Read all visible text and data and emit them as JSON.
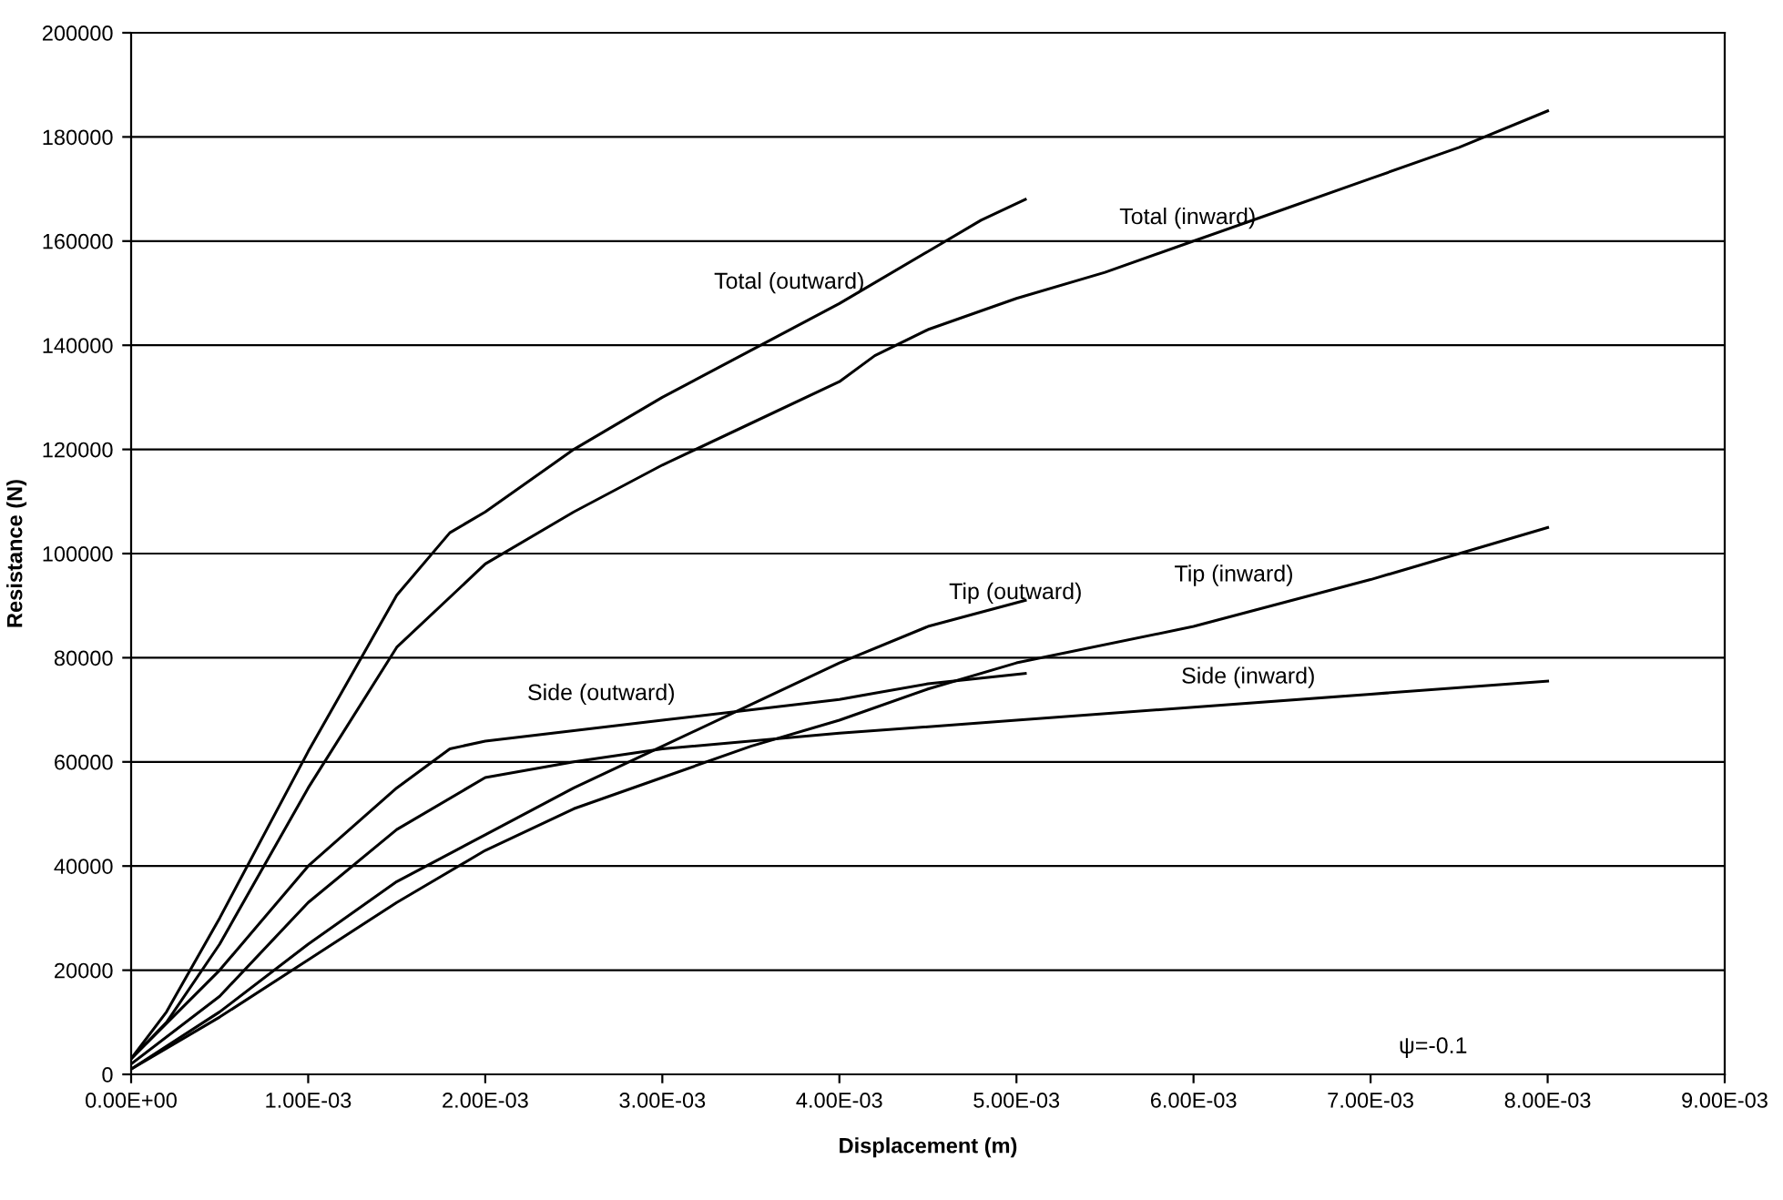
{
  "chart_data": {
    "type": "line",
    "xlabel": "Displacement (m)",
    "ylabel": "Resistance (N)",
    "grid": "y",
    "legend": false,
    "marker": "none",
    "line_style": "solid",
    "xlim": [
      0,
      0.009
    ],
    "ylim": [
      0,
      200000
    ],
    "xticks": [
      {
        "value": 0,
        "label": "0.00E+00"
      },
      {
        "value": 0.001,
        "label": "1.00E-03"
      },
      {
        "value": 0.002,
        "label": "2.00E-03"
      },
      {
        "value": 0.003,
        "label": "3.00E-03"
      },
      {
        "value": 0.004,
        "label": "4.00E-03"
      },
      {
        "value": 0.005,
        "label": "5.00E-03"
      },
      {
        "value": 0.006,
        "label": "6.00E-03"
      },
      {
        "value": 0.007,
        "label": "7.00E-03"
      },
      {
        "value": 0.008,
        "label": "8.00E-03"
      },
      {
        "value": 0.009,
        "label": "9.00E-03"
      }
    ],
    "yticks": [
      0,
      20000,
      40000,
      60000,
      80000,
      100000,
      120000,
      140000,
      160000,
      180000,
      200000
    ],
    "series": [
      {
        "color": "#000000",
        "x": [
          0,
          0.0002,
          0.0005,
          0.001,
          0.0015,
          0.0018,
          0.002,
          0.0025,
          0.003,
          0.0035,
          0.004,
          0.0045,
          0.0048,
          0.00505
        ],
        "values": [
          3000,
          12000,
          30000,
          62000,
          92000,
          104000,
          108000,
          120000,
          130000,
          139000,
          148000,
          158000,
          164000,
          168000
        ]
      },
      {
        "color": "#000000",
        "x": [
          0,
          0.0002,
          0.0005,
          0.001,
          0.0015,
          0.002,
          0.0025,
          0.003,
          0.0035,
          0.004,
          0.0042,
          0.0045,
          0.005,
          0.0055,
          0.006,
          0.0065,
          0.007,
          0.0075,
          0.008
        ],
        "values": [
          3000,
          10000,
          25000,
          55000,
          82000,
          98000,
          108000,
          117000,
          125000,
          133000,
          138000,
          143000,
          149000,
          154000,
          160000,
          166000,
          172000,
          178000,
          185000
        ]
      },
      {
        "color": "#000000",
        "x": [
          0,
          0.0005,
          0.001,
          0.0015,
          0.0018,
          0.002,
          0.003,
          0.004,
          0.0045,
          0.00505
        ],
        "values": [
          3000,
          20000,
          40000,
          55000,
          62500,
          64000,
          68000,
          72000,
          75000,
          77000
        ]
      },
      {
        "color": "#000000",
        "x": [
          0,
          0.0005,
          0.001,
          0.0015,
          0.002,
          0.0025,
          0.003,
          0.004,
          0.005,
          0.006,
          0.007,
          0.008
        ],
        "values": [
          2000,
          15000,
          33000,
          47000,
          57000,
          60000,
          62500,
          65500,
          68000,
          70500,
          73000,
          75500
        ]
      },
      {
        "color": "#000000",
        "x": [
          0,
          0.0005,
          0.001,
          0.0015,
          0.002,
          0.0025,
          0.003,
          0.0035,
          0.004,
          0.0045,
          0.00505
        ],
        "values": [
          1000,
          12000,
          25000,
          37000,
          46000,
          55000,
          63000,
          71000,
          79000,
          86000,
          91000
        ]
      },
      {
        "color": "#000000",
        "x": [
          0,
          0.0005,
          0.001,
          0.0015,
          0.002,
          0.0025,
          0.003,
          0.0035,
          0.004,
          0.0045,
          0.005,
          0.006,
          0.007,
          0.008
        ],
        "values": [
          1000,
          11000,
          22000,
          33000,
          43000,
          51000,
          57000,
          63000,
          68000,
          74000,
          79000,
          86000,
          95000,
          105000
        ]
      }
    ],
    "annotations": [
      "Total (outward)",
      "Total (inward)",
      "Tip (outward)",
      "Tip (inward)",
      "Side (outward)",
      "Side (inward)",
      "ψ=-0.1"
    ]
  }
}
